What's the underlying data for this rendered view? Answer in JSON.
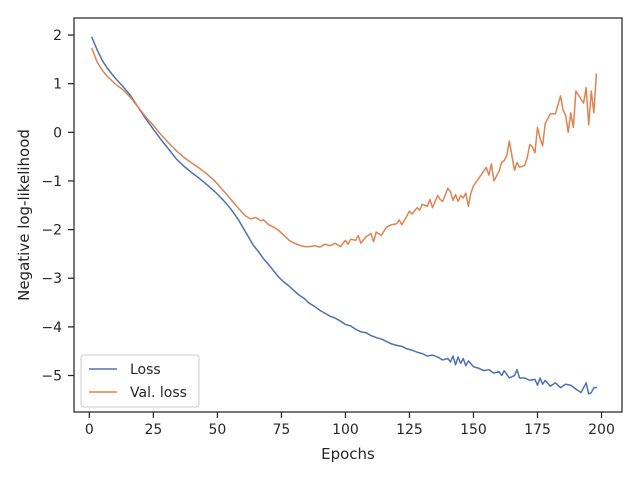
{
  "chart_data": {
    "type": "line",
    "title": "",
    "xlabel": "Epochs",
    "ylabel": "Negative log-likelihood",
    "xlim": [
      -6,
      208
    ],
    "ylim": [
      -5.75,
      2.35
    ],
    "xticks": [
      0,
      25,
      50,
      75,
      100,
      125,
      150,
      175,
      200
    ],
    "yticks": [
      2,
      1,
      0,
      -1,
      -2,
      -3,
      -4,
      -5
    ],
    "grid": false,
    "legend_position": "lower left",
    "series": [
      {
        "name": "Loss",
        "color": "#4c72b0",
        "x": [
          1,
          3,
          5,
          7,
          10,
          13,
          16,
          19,
          22,
          25,
          28,
          31,
          34,
          37,
          40,
          43,
          46,
          49,
          52,
          55,
          58,
          61,
          64,
          66,
          68,
          70,
          72,
          74,
          76,
          78,
          80,
          82,
          84,
          86,
          88,
          90,
          92,
          94,
          96,
          98,
          100,
          102,
          104,
          106,
          108,
          110,
          112,
          114,
          116,
          118,
          120,
          122,
          124,
          126,
          128,
          130,
          132,
          134,
          136,
          138,
          140,
          141,
          142,
          143,
          144,
          145,
          146,
          147,
          148,
          150,
          152,
          154,
          156,
          158,
          160,
          161,
          162,
          164,
          166,
          167,
          168,
          170,
          172,
          174,
          175,
          176,
          177,
          178,
          180,
          182,
          184,
          186,
          188,
          190,
          192,
          194,
          195,
          196,
          197,
          198
        ],
        "y": [
          1.95,
          1.7,
          1.48,
          1.32,
          1.12,
          0.95,
          0.76,
          0.52,
          0.28,
          0.06,
          -0.15,
          -0.35,
          -0.55,
          -0.7,
          -0.83,
          -0.95,
          -1.08,
          -1.22,
          -1.38,
          -1.56,
          -1.78,
          -2.05,
          -2.32,
          -2.45,
          -2.6,
          -2.72,
          -2.85,
          -2.98,
          -3.08,
          -3.16,
          -3.26,
          -3.35,
          -3.42,
          -3.52,
          -3.58,
          -3.66,
          -3.72,
          -3.78,
          -3.82,
          -3.88,
          -3.95,
          -3.98,
          -4.05,
          -4.1,
          -4.12,
          -4.18,
          -4.22,
          -4.25,
          -4.3,
          -4.35,
          -4.38,
          -4.4,
          -4.45,
          -4.48,
          -4.52,
          -4.55,
          -4.6,
          -4.58,
          -4.62,
          -4.68,
          -4.65,
          -4.72,
          -4.6,
          -4.78,
          -4.62,
          -4.75,
          -4.65,
          -4.8,
          -4.7,
          -4.82,
          -4.85,
          -4.9,
          -4.88,
          -4.95,
          -4.92,
          -5.0,
          -4.9,
          -5.05,
          -5.0,
          -4.88,
          -5.05,
          -5.05,
          -5.1,
          -5.08,
          -5.2,
          -5.05,
          -5.18,
          -5.1,
          -5.22,
          -5.15,
          -5.25,
          -5.18,
          -5.2,
          -5.28,
          -5.35,
          -5.15,
          -5.38,
          -5.35,
          -5.25,
          -5.25
        ]
      },
      {
        "name": "Val. loss",
        "color": "#dd8452",
        "x": [
          1,
          3,
          5,
          7,
          10,
          13,
          16,
          19,
          22,
          25,
          28,
          31,
          34,
          37,
          40,
          43,
          46,
          49,
          52,
          55,
          58,
          61,
          63,
          65,
          67,
          68,
          69,
          70,
          72,
          74,
          76,
          78,
          80,
          82,
          84,
          86,
          88,
          90,
          92,
          94,
          96,
          98,
          100,
          101,
          102,
          104,
          105,
          106,
          108,
          110,
          111,
          112,
          114,
          116,
          118,
          120,
          121,
          122,
          124,
          125,
          126,
          128,
          129,
          130,
          132,
          133,
          134,
          136,
          137,
          138,
          140,
          141,
          142,
          143,
          144,
          145,
          146,
          147,
          148,
          149,
          150,
          152,
          154,
          155,
          156,
          157,
          158,
          160,
          161,
          162,
          163,
          164,
          166,
          167,
          168,
          170,
          171,
          172,
          173,
          174,
          175,
          176,
          177,
          178,
          180,
          182,
          184,
          185,
          186,
          187,
          188,
          189,
          190,
          192,
          193,
          194,
          195,
          196,
          197,
          198
        ],
        "y": [
          1.72,
          1.45,
          1.28,
          1.15,
          1.0,
          0.88,
          0.72,
          0.52,
          0.32,
          0.14,
          -0.05,
          -0.22,
          -0.38,
          -0.52,
          -0.63,
          -0.74,
          -0.86,
          -1.0,
          -1.18,
          -1.36,
          -1.55,
          -1.72,
          -1.78,
          -1.75,
          -1.82,
          -1.8,
          -1.85,
          -1.9,
          -1.95,
          -2.02,
          -2.12,
          -2.22,
          -2.28,
          -2.32,
          -2.35,
          -2.35,
          -2.33,
          -2.36,
          -2.3,
          -2.33,
          -2.28,
          -2.35,
          -2.22,
          -2.3,
          -2.2,
          -2.22,
          -2.12,
          -2.28,
          -2.15,
          -2.08,
          -2.25,
          -2.05,
          -2.12,
          -1.95,
          -1.9,
          -1.88,
          -1.8,
          -1.9,
          -1.72,
          -1.62,
          -1.68,
          -1.55,
          -1.6,
          -1.48,
          -1.52,
          -1.38,
          -1.55,
          -1.3,
          -1.38,
          -1.42,
          -1.15,
          -1.22,
          -1.4,
          -1.28,
          -1.42,
          -1.3,
          -1.35,
          -1.25,
          -1.52,
          -1.25,
          -1.1,
          -0.95,
          -0.8,
          -0.72,
          -0.88,
          -0.65,
          -1.0,
          -0.8,
          -0.62,
          -0.58,
          -0.48,
          -0.18,
          -0.78,
          -0.62,
          -0.72,
          -0.68,
          -0.52,
          -0.25,
          -0.3,
          -0.42,
          0.1,
          -0.12,
          -0.28,
          0.18,
          0.38,
          0.38,
          0.75,
          0.45,
          0.35,
          0.0,
          0.4,
          0.1,
          0.85,
          0.68,
          0.6,
          0.92,
          0.15,
          0.85,
          0.4,
          1.2
        ]
      }
    ]
  }
}
